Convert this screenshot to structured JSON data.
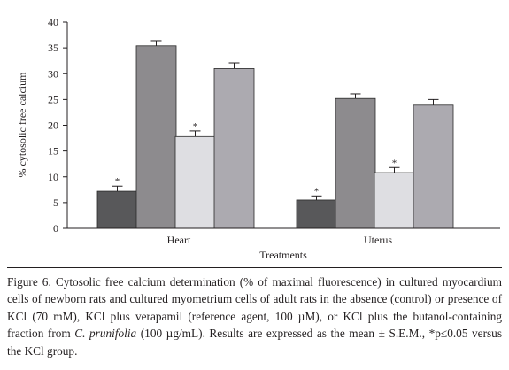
{
  "chart_data": {
    "type": "bar",
    "ylabel": "% cytosolic free calcium",
    "xlabel": "Treatments",
    "categories": [
      "Heart",
      "Uterus"
    ],
    "ylim": [
      0,
      40
    ],
    "yticks": [
      0,
      5,
      10,
      15,
      20,
      25,
      30,
      35,
      40
    ],
    "grid": false,
    "legend": "none",
    "series": [
      {
        "values": [
          7.2,
          5.5
        ],
        "errors": [
          1.0,
          0.8
        ],
        "significant": [
          true,
          true
        ],
        "color": "#58585a"
      },
      {
        "values": [
          35.4,
          25.2
        ],
        "errors": [
          1.0,
          0.9
        ],
        "significant": [
          false,
          false
        ],
        "color": "#8d8b8e"
      },
      {
        "values": [
          17.8,
          10.8
        ],
        "errors": [
          1.1,
          1.0
        ],
        "significant": [
          true,
          true
        ],
        "color": "#dedee2"
      },
      {
        "values": [
          31.0,
          23.9
        ],
        "errors": [
          1.1,
          1.1
        ],
        "significant": [
          false,
          false
        ],
        "color": "#acaab0"
      }
    ],
    "significance_marker": "*"
  },
  "caption": {
    "part1": "Figure 6. Cytosolic free calcium determination (% of maximal fluorescence) in cultured myocardium cells of newborn rats and cultured myometrium cells of adult rats in the absence (control) or presence of KCl (70 mM), KCl plus verapamil (reference agent, 100 µM), or KCl plus the butanol-containing fraction from ",
    "species": "C. prunifolia",
    "part2": " (100 µg/mL). Results are expressed as the mean ± S.E.M., *p≤0.05 versus the KCl group."
  }
}
